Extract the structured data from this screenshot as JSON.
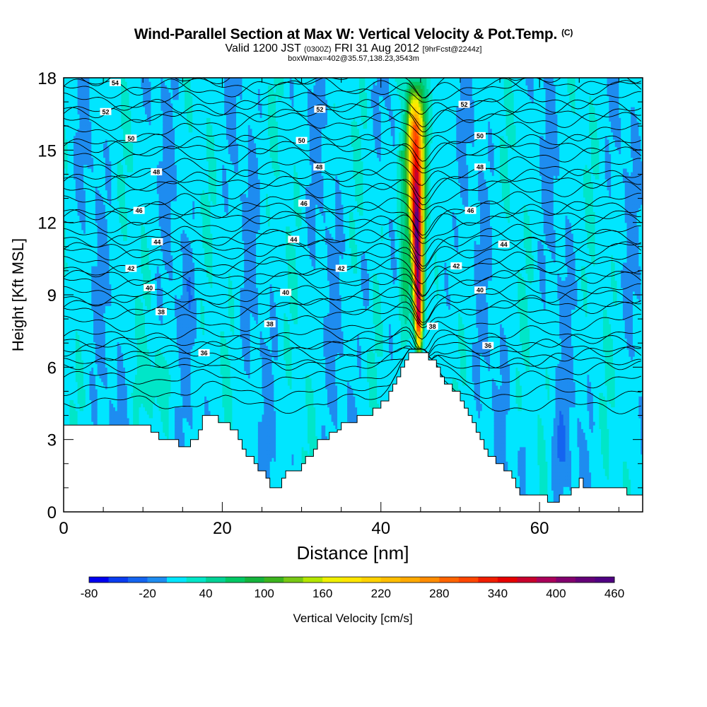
{
  "header": {
    "title": "Wind-Parallel Section at Max W: Vertical Velocity & Pot.Temp.",
    "title_mark": "(C)",
    "valid_prefix": "Valid 1200 JST",
    "valid_utc": "(0300Z)",
    "valid_date": "FRI 31 Aug 2012",
    "forecast": "[9hrFcst@2244z]",
    "boxinfo": "boxWmax=402@35.57,138.23,3543m"
  },
  "chart_data": {
    "type": "heatmap",
    "xlabel": "Distance [nm]",
    "ylabel": "Height [Kft MSL]",
    "xlim": [
      0,
      73
    ],
    "ylim": [
      0,
      18
    ],
    "x_ticks": [
      "0",
      "20",
      "40",
      "60"
    ],
    "y_ticks": [
      "0",
      "3",
      "6",
      "9",
      "12",
      "15",
      "18"
    ],
    "colorbar": {
      "label": "Vertical Velocity [cm/s]",
      "tick_labels": [
        "-80",
        "-20",
        "40",
        "100",
        "160",
        "220",
        "280",
        "340",
        "400",
        "460"
      ],
      "levels": [
        -80,
        -60,
        -40,
        -20,
        0,
        20,
        40,
        60,
        80,
        100,
        120,
        140,
        160,
        180,
        200,
        220,
        240,
        260,
        280,
        300,
        320,
        340,
        360,
        380,
        400,
        420,
        440,
        460
      ],
      "colors": [
        "#0000f0",
        "#0a3cf0",
        "#1464f0",
        "#1e8cf0",
        "#00e6ff",
        "#00e6c8",
        "#00d296",
        "#00c864",
        "#14b43c",
        "#3cb41e",
        "#78c814",
        "#b4e600",
        "#f0f000",
        "#ffe600",
        "#ffd200",
        "#ffbe00",
        "#ffaa00",
        "#ff8c00",
        "#ff6400",
        "#ff4600",
        "#f01e00",
        "#e60000",
        "#c8002d",
        "#aa005a",
        "#82006e",
        "#640078",
        "#500082"
      ]
    },
    "terrain_kft": [
      [
        0,
        3.6
      ],
      [
        10.5,
        3.6
      ],
      [
        11,
        3.3
      ],
      [
        12,
        3.0
      ],
      [
        14,
        3.0
      ],
      [
        14.5,
        2.7
      ],
      [
        15.5,
        2.7
      ],
      [
        16,
        3.0
      ],
      [
        17,
        3.4
      ],
      [
        17.5,
        4.0
      ],
      [
        19,
        4.0
      ],
      [
        19.5,
        3.7
      ],
      [
        20.5,
        3.7
      ],
      [
        21,
        3.4
      ],
      [
        21.5,
        3.4
      ],
      [
        22,
        3.0
      ],
      [
        22.5,
        2.6
      ],
      [
        23,
        2.3
      ],
      [
        24,
        2.0
      ],
      [
        24.5,
        1.7
      ],
      [
        25.5,
        1.4
      ],
      [
        26,
        1.0
      ],
      [
        27,
        1.0
      ],
      [
        27.5,
        1.4
      ],
      [
        28,
        1.7
      ],
      [
        29,
        1.7
      ],
      [
        30,
        2.0
      ],
      [
        30.5,
        2.3
      ],
      [
        31.5,
        2.6
      ],
      [
        32,
        3.0
      ],
      [
        33,
        3.0
      ],
      [
        33.5,
        3.3
      ],
      [
        34.5,
        3.4
      ],
      [
        35,
        3.7
      ],
      [
        36,
        3.7
      ],
      [
        37,
        4.0
      ],
      [
        38,
        4.0
      ],
      [
        39,
        4.3
      ],
      [
        40,
        4.6
      ],
      [
        41,
        5.0
      ],
      [
        41.5,
        5.3
      ],
      [
        42,
        5.6
      ],
      [
        42.5,
        6.0
      ],
      [
        43,
        6.3
      ],
      [
        43.5,
        6.6
      ],
      [
        45.5,
        6.6
      ],
      [
        46,
        6.3
      ],
      [
        47,
        6.0
      ],
      [
        47.5,
        5.6
      ],
      [
        48,
        5.3
      ],
      [
        49,
        5.0
      ],
      [
        50,
        4.6
      ],
      [
        50.5,
        4.3
      ],
      [
        51,
        4.0
      ],
      [
        51.5,
        3.7
      ],
      [
        52,
        3.3
      ],
      [
        52.5,
        3.0
      ],
      [
        53,
        2.6
      ],
      [
        53.5,
        2.3
      ],
      [
        54.5,
        2.0
      ],
      [
        55.5,
        1.7
      ],
      [
        56.5,
        1.4
      ],
      [
        57,
        1.0
      ],
      [
        57.5,
        0.7
      ],
      [
        60,
        0.7
      ],
      [
        60.5,
        0.7
      ],
      [
        61,
        0.4
      ],
      [
        62,
        0.4
      ],
      [
        62.5,
        0.7
      ],
      [
        63.5,
        0.7
      ],
      [
        64,
        1.0
      ],
      [
        65,
        1.4
      ],
      [
        65.5,
        1.0
      ],
      [
        70,
        1.0
      ],
      [
        71,
        0.7
      ],
      [
        73,
        0.7
      ]
    ],
    "theta_contour_labels": [
      {
        "text": "54",
        "x": 6.5,
        "y": 17.8
      },
      {
        "text": "52",
        "x": 5.3,
        "y": 16.6
      },
      {
        "text": "52",
        "x": 32.3,
        "y": 16.7
      },
      {
        "text": "52",
        "x": 50.5,
        "y": 16.9
      },
      {
        "text": "50",
        "x": 8.5,
        "y": 15.5
      },
      {
        "text": "50",
        "x": 30.0,
        "y": 15.4
      },
      {
        "text": "50",
        "x": 52.5,
        "y": 15.6
      },
      {
        "text": "48",
        "x": 11.7,
        "y": 14.1
      },
      {
        "text": "48",
        "x": 32.2,
        "y": 14.3
      },
      {
        "text": "48",
        "x": 52.5,
        "y": 14.3
      },
      {
        "text": "46",
        "x": 9.5,
        "y": 12.5
      },
      {
        "text": "46",
        "x": 30.3,
        "y": 12.8
      },
      {
        "text": "46",
        "x": 51.3,
        "y": 12.5
      },
      {
        "text": "44",
        "x": 11.8,
        "y": 11.2
      },
      {
        "text": "44",
        "x": 29.0,
        "y": 11.3
      },
      {
        "text": "44",
        "x": 55.5,
        "y": 11.1
      },
      {
        "text": "42",
        "x": 8.5,
        "y": 10.1
      },
      {
        "text": "42",
        "x": 35.0,
        "y": 10.1
      },
      {
        "text": "42",
        "x": 49.5,
        "y": 10.2
      },
      {
        "text": "40",
        "x": 10.8,
        "y": 9.3
      },
      {
        "text": "40",
        "x": 28.0,
        "y": 9.1
      },
      {
        "text": "40",
        "x": 52.5,
        "y": 9.2
      },
      {
        "text": "38",
        "x": 12.3,
        "y": 8.3
      },
      {
        "text": "38",
        "x": 26.0,
        "y": 7.8
      },
      {
        "text": "38",
        "x": 46.5,
        "y": 7.7
      },
      {
        "text": "36",
        "x": 17.7,
        "y": 6.6
      },
      {
        "text": "36",
        "x": 53.5,
        "y": 6.9
      }
    ]
  }
}
